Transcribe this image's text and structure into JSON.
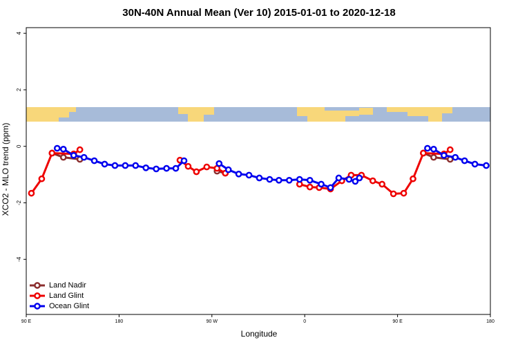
{
  "chart_data": {
    "type": "line",
    "title": "30N-40N Annual Mean (Ver 10)   2015-01-01 to 2020-12-18",
    "x_label": "Longitude",
    "y_label": "XCO2 - MLO trend (ppm)",
    "xlim": [
      90,
      540
    ],
    "xticks": [
      {
        "value": 90,
        "label": "90 E"
      },
      {
        "value": 180,
        "label": "180"
      },
      {
        "value": 270,
        "label": "90 W"
      },
      {
        "value": 360,
        "label": "0"
      },
      {
        "value": 450,
        "label": "90 E"
      },
      {
        "value": 540,
        "label": "180"
      }
    ],
    "ylim": [
      -5.95,
      4.2
    ],
    "yticks": [
      -4,
      -2,
      0,
      2,
      4
    ],
    "legend": "bottom-left",
    "series": [
      {
        "name": "Land Nadir",
        "color": "#8b2e2e",
        "x": [
          115,
          126,
          142,
          200,
          275,
          283,
          400,
          475,
          485,
          501
        ],
        "values": [
          -0.24,
          -0.39,
          -0.46,
          null,
          -0.88,
          -0.95,
          null,
          -0.24,
          -0.39,
          -0.46
        ]
      },
      {
        "name": "Land Glint",
        "color": "#ee0000",
        "x": [
          95,
          105,
          115,
          136,
          142,
          190,
          239,
          247,
          255,
          265,
          275,
          283,
          320,
          355,
          365,
          374,
          385,
          396,
          405,
          415,
          426,
          435,
          446,
          456,
          465,
          475,
          495,
          501
        ],
        "values": [
          -1.66,
          -1.15,
          -0.24,
          -0.27,
          -0.12,
          null,
          -0.49,
          -0.71,
          -0.9,
          -0.73,
          -0.78,
          -0.95,
          null,
          -1.34,
          -1.44,
          -1.46,
          -1.51,
          -1.22,
          -1.02,
          -1.02,
          -1.22,
          -1.34,
          -1.68,
          -1.66,
          -1.15,
          -0.24,
          -0.27,
          -0.12
        ]
      },
      {
        "name": "Ocean Glint",
        "color": "#0000ee",
        "x": [
          120,
          126,
          136,
          146,
          156,
          166,
          176,
          186,
          196,
          206,
          216,
          226,
          235,
          243,
          260,
          277,
          286,
          296,
          306,
          316,
          326,
          335,
          345,
          355,
          365,
          376,
          385,
          393,
          403,
          409,
          413,
          450,
          479,
          485,
          495,
          506,
          515,
          525,
          536
        ],
        "values": [
          -0.07,
          -0.1,
          -0.32,
          -0.39,
          -0.51,
          -0.63,
          -0.68,
          -0.68,
          -0.68,
          -0.76,
          -0.8,
          -0.78,
          -0.78,
          -0.51,
          null,
          -0.61,
          -0.83,
          -0.98,
          -1.02,
          -1.12,
          -1.17,
          -1.2,
          -1.2,
          -1.17,
          -1.2,
          -1.34,
          -1.46,
          -1.12,
          -1.17,
          -1.24,
          -1.12,
          null,
          -0.07,
          -0.1,
          -0.32,
          -0.39,
          -0.51,
          -0.63,
          -0.68
        ]
      }
    ]
  }
}
